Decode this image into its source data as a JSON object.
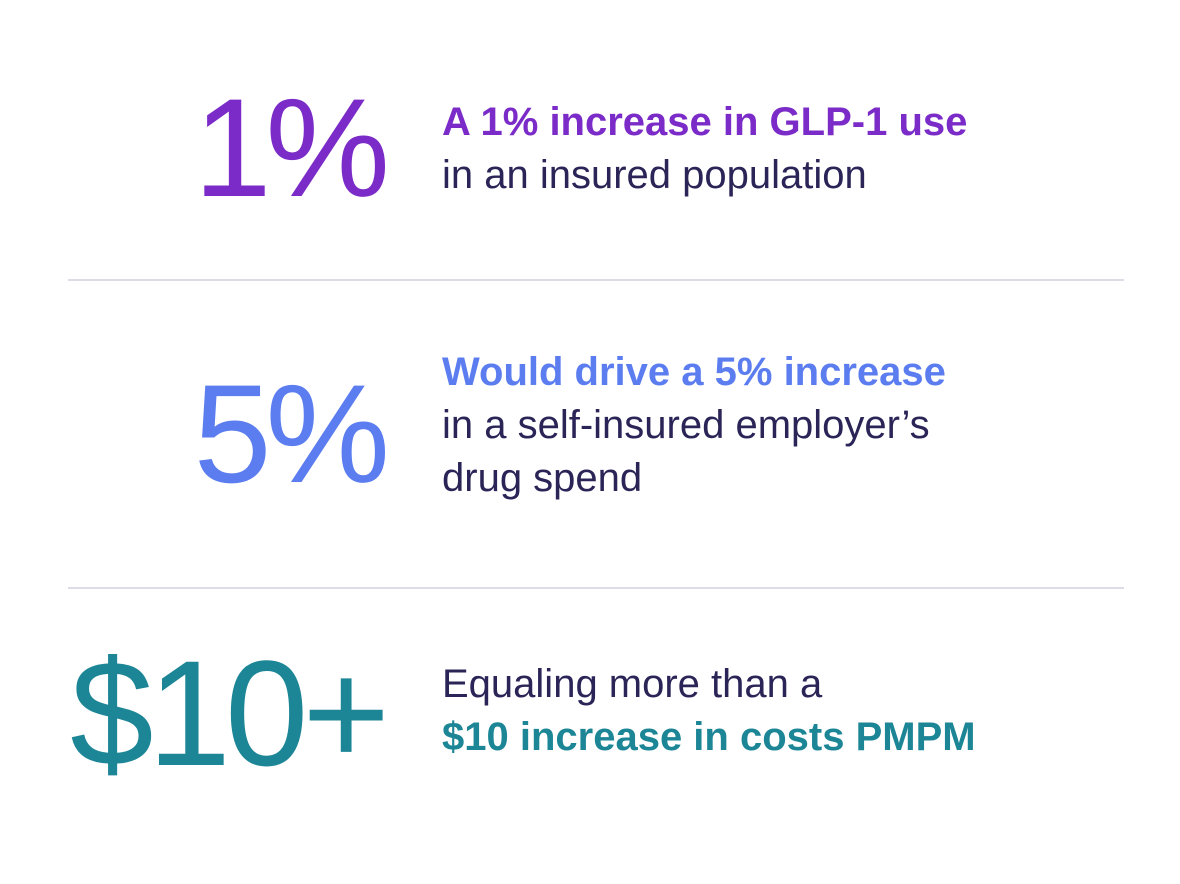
{
  "colors": {
    "purple": "#7b2bc7",
    "blue": "#5b7df0",
    "teal": "#1c8696",
    "text": "#2a2457",
    "divider": "#dcdbe6"
  },
  "stats": [
    {
      "value": "1%",
      "lines": [
        {
          "text": "A 1% increase in GLP-1 use",
          "bold": true
        },
        {
          "text": "in an insured population",
          "bold": false
        }
      ]
    },
    {
      "value": "5%",
      "lines": [
        {
          "text": "Would drive a 5% increase",
          "bold": true
        },
        {
          "text": "in a self-insured employer’s",
          "bold": false
        },
        {
          "text": "drug spend",
          "bold": false
        }
      ]
    },
    {
      "value": "$10+",
      "lines": [
        {
          "text": "Equaling more than a",
          "bold": false
        },
        {
          "text": "$10 increase in costs PMPM",
          "bold": true
        }
      ]
    }
  ]
}
